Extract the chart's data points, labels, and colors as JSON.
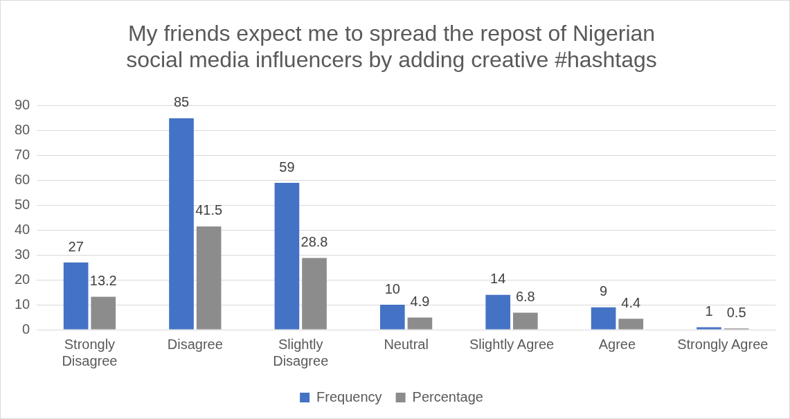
{
  "chart_data": {
    "type": "bar",
    "title": "My friends expect me to spread the repost of Nigerian social media influencers by adding creative #hashtags",
    "categories": [
      "Strongly Disagree",
      "Disagree",
      "Slightly Disagree",
      "Neutral",
      "Slightly Agree",
      "Agree",
      "Strongly Agree"
    ],
    "series": [
      {
        "name": "Frequency",
        "color": "#4472c4",
        "values": [
          27,
          85,
          59,
          10,
          14,
          9,
          1
        ]
      },
      {
        "name": "Percentage",
        "color": "#8c8c8c",
        "values": [
          13.2,
          41.5,
          28.8,
          4.9,
          6.8,
          4.4,
          0.5
        ]
      }
    ],
    "ylim": [
      0,
      90
    ],
    "yticks": [
      0,
      10,
      20,
      30,
      40,
      50,
      60,
      70,
      80,
      90
    ],
    "grid": "y",
    "legend": "bottom",
    "data_labels": true
  }
}
